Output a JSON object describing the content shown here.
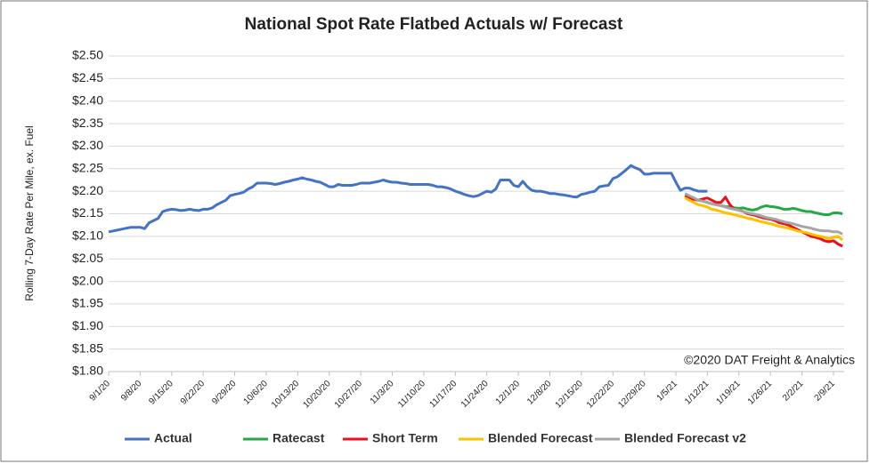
{
  "chart_data": {
    "type": "line",
    "title": "National Spot Rate Flatbed Actuals w/ Forecast",
    "ylabel": "Rolling 7-Day Rate Per Mile, ex. Fuel",
    "annotation": "©2020 DAT Freight & Analytics",
    "categories": [
      "9/1/20",
      null,
      null,
      null,
      null,
      null,
      null,
      "9/8/20",
      null,
      null,
      null,
      null,
      null,
      null,
      "9/15/20",
      null,
      null,
      null,
      null,
      null,
      null,
      "9/22/20",
      null,
      null,
      null,
      null,
      null,
      null,
      "9/29/20",
      null,
      null,
      null,
      null,
      null,
      null,
      "10/6/20",
      null,
      null,
      null,
      null,
      null,
      null,
      "10/13/20",
      null,
      null,
      null,
      null,
      null,
      null,
      "10/20/20",
      null,
      null,
      null,
      null,
      null,
      null,
      "10/27/20",
      null,
      null,
      null,
      null,
      null,
      null,
      "11/3/20",
      null,
      null,
      null,
      null,
      null,
      null,
      "11/10/20",
      null,
      null,
      null,
      null,
      null,
      null,
      "11/17/20",
      null,
      null,
      null,
      null,
      null,
      null,
      "11/24/20",
      null,
      null,
      null,
      null,
      null,
      null,
      "12/1/20",
      null,
      null,
      null,
      null,
      null,
      null,
      "12/8/20",
      null,
      null,
      null,
      null,
      null,
      null,
      "12/15/20",
      null,
      null,
      null,
      null,
      null,
      null,
      "12/22/20",
      null,
      null,
      null,
      null,
      null,
      null,
      "12/29/20",
      null,
      null,
      null,
      null,
      null,
      null,
      "1/5/21",
      null,
      null,
      null,
      null,
      null,
      null,
      "1/12/21",
      null,
      null,
      null,
      null,
      null,
      null,
      "1/19/21",
      null,
      null,
      null,
      null,
      null,
      null,
      "1/26/21",
      null,
      null,
      null,
      null,
      null,
      null,
      "2/2/21",
      null,
      null,
      null,
      null,
      null,
      null,
      "2/9/21",
      null,
      null
    ],
    "series": [
      {
        "name": "Actual",
        "color": "#4472c4",
        "values": [
          2.11,
          2.112,
          2.114,
          2.116,
          2.118,
          2.12,
          2.12,
          2.12,
          2.117,
          2.13,
          2.135,
          2.14,
          2.155,
          2.158,
          2.16,
          2.159,
          2.157,
          2.158,
          2.16,
          2.158,
          2.157,
          2.16,
          2.16,
          2.163,
          2.17,
          2.175,
          2.18,
          2.19,
          2.193,
          2.195,
          2.198,
          2.205,
          2.21,
          2.218,
          2.218,
          2.218,
          2.217,
          2.215,
          2.217,
          2.22,
          2.222,
          2.225,
          2.227,
          2.23,
          2.227,
          2.225,
          2.222,
          2.22,
          2.215,
          2.21,
          2.21,
          2.215,
          2.213,
          2.213,
          2.213,
          2.215,
          2.218,
          2.218,
          2.218,
          2.22,
          2.222,
          2.225,
          2.222,
          2.22,
          2.22,
          2.218,
          2.217,
          2.215,
          2.215,
          2.215,
          2.215,
          2.215,
          2.213,
          2.21,
          2.21,
          2.208,
          2.205,
          2.2,
          2.197,
          2.193,
          2.19,
          2.188,
          2.19,
          2.195,
          2.2,
          2.198,
          2.205,
          2.225,
          2.225,
          2.225,
          2.213,
          2.21,
          2.222,
          2.21,
          2.202,
          2.2,
          2.2,
          2.198,
          2.195,
          2.195,
          2.193,
          2.192,
          2.19,
          2.188,
          2.187,
          2.193,
          2.195,
          2.198,
          2.2,
          2.21,
          2.212,
          2.213,
          2.228,
          2.232,
          2.24,
          2.248,
          2.257,
          2.252,
          2.248,
          2.238,
          2.238,
          2.24,
          2.24,
          2.24,
          2.24,
          2.24,
          2.22,
          2.202,
          2.207,
          2.207,
          2.203,
          2.2,
          2.2,
          2.2,
          null,
          null,
          null,
          null,
          null,
          null,
          null,
          null,
          null,
          null,
          null,
          null,
          null,
          null,
          null,
          null,
          null,
          null,
          null,
          null,
          null,
          null,
          null,
          null,
          null,
          null,
          null,
          null,
          null,
          null
        ]
      },
      {
        "name": "Ratecast",
        "color": "#28a745",
        "values": [
          null,
          null,
          null,
          null,
          null,
          null,
          null,
          null,
          null,
          null,
          null,
          null,
          null,
          null,
          null,
          null,
          null,
          null,
          null,
          null,
          null,
          null,
          null,
          null,
          null,
          null,
          null,
          null,
          null,
          null,
          null,
          null,
          null,
          null,
          null,
          null,
          null,
          null,
          null,
          null,
          null,
          null,
          null,
          null,
          null,
          null,
          null,
          null,
          null,
          null,
          null,
          null,
          null,
          null,
          null,
          null,
          null,
          null,
          null,
          null,
          null,
          null,
          null,
          null,
          null,
          null,
          null,
          null,
          null,
          null,
          null,
          null,
          null,
          null,
          null,
          null,
          null,
          null,
          null,
          null,
          null,
          null,
          null,
          null,
          null,
          null,
          null,
          null,
          null,
          null,
          null,
          null,
          null,
          null,
          null,
          null,
          null,
          null,
          null,
          null,
          null,
          null,
          null,
          null,
          null,
          null,
          null,
          null,
          null,
          null,
          null,
          null,
          null,
          null,
          null,
          null,
          null,
          null,
          null,
          null,
          null,
          null,
          null,
          null,
          null,
          null,
          null,
          null,
          2.19,
          2.187,
          2.183,
          2.18,
          2.178,
          2.175,
          2.172,
          2.17,
          2.168,
          2.166,
          2.165,
          2.163,
          2.162,
          2.163,
          2.16,
          2.158,
          2.16,
          2.165,
          2.168,
          2.166,
          2.165,
          2.163,
          2.16,
          2.16,
          2.162,
          2.16,
          2.157,
          2.155,
          2.155,
          2.152,
          2.15,
          2.148,
          2.148,
          2.152,
          2.152,
          2.15
        ]
      },
      {
        "name": "Short Term",
        "color": "#e8101a",
        "values": [
          null,
          null,
          null,
          null,
          null,
          null,
          null,
          null,
          null,
          null,
          null,
          null,
          null,
          null,
          null,
          null,
          null,
          null,
          null,
          null,
          null,
          null,
          null,
          null,
          null,
          null,
          null,
          null,
          null,
          null,
          null,
          null,
          null,
          null,
          null,
          null,
          null,
          null,
          null,
          null,
          null,
          null,
          null,
          null,
          null,
          null,
          null,
          null,
          null,
          null,
          null,
          null,
          null,
          null,
          null,
          null,
          null,
          null,
          null,
          null,
          null,
          null,
          null,
          null,
          null,
          null,
          null,
          null,
          null,
          null,
          null,
          null,
          null,
          null,
          null,
          null,
          null,
          null,
          null,
          null,
          null,
          null,
          null,
          null,
          null,
          null,
          null,
          null,
          null,
          null,
          null,
          null,
          null,
          null,
          null,
          null,
          null,
          null,
          null,
          null,
          null,
          null,
          null,
          null,
          null,
          null,
          null,
          null,
          null,
          null,
          null,
          null,
          null,
          null,
          null,
          null,
          null,
          null,
          null,
          null,
          null,
          null,
          null,
          null,
          null,
          null,
          null,
          null,
          2.19,
          2.185,
          2.182,
          2.18,
          2.183,
          2.185,
          2.18,
          2.175,
          2.175,
          2.187,
          2.17,
          2.16,
          2.158,
          2.155,
          2.15,
          2.148,
          2.145,
          2.142,
          2.14,
          2.138,
          2.135,
          2.13,
          2.128,
          2.125,
          2.12,
          2.115,
          2.11,
          2.105,
          2.1,
          2.098,
          2.095,
          2.09,
          2.088,
          2.09,
          2.083,
          2.078
        ]
      },
      {
        "name": "Blended Forecast",
        "color": "#ffc000",
        "values": [
          null,
          null,
          null,
          null,
          null,
          null,
          null,
          null,
          null,
          null,
          null,
          null,
          null,
          null,
          null,
          null,
          null,
          null,
          null,
          null,
          null,
          null,
          null,
          null,
          null,
          null,
          null,
          null,
          null,
          null,
          null,
          null,
          null,
          null,
          null,
          null,
          null,
          null,
          null,
          null,
          null,
          null,
          null,
          null,
          null,
          null,
          null,
          null,
          null,
          null,
          null,
          null,
          null,
          null,
          null,
          null,
          null,
          null,
          null,
          null,
          null,
          null,
          null,
          null,
          null,
          null,
          null,
          null,
          null,
          null,
          null,
          null,
          null,
          null,
          null,
          null,
          null,
          null,
          null,
          null,
          null,
          null,
          null,
          null,
          null,
          null,
          null,
          null,
          null,
          null,
          null,
          null,
          null,
          null,
          null,
          null,
          null,
          null,
          null,
          null,
          null,
          null,
          null,
          null,
          null,
          null,
          null,
          null,
          null,
          null,
          null,
          null,
          null,
          null,
          null,
          null,
          null,
          null,
          null,
          null,
          null,
          null,
          null,
          null,
          null,
          null,
          null,
          null,
          2.185,
          2.18,
          2.175,
          2.17,
          2.168,
          2.165,
          2.16,
          2.158,
          2.155,
          2.152,
          2.15,
          2.148,
          2.145,
          2.143,
          2.14,
          2.138,
          2.135,
          2.132,
          2.13,
          2.128,
          2.125,
          2.122,
          2.12,
          2.118,
          2.115,
          2.112,
          2.11,
          2.108,
          2.105,
          2.102,
          2.1,
          2.098,
          2.095,
          2.098,
          2.1,
          2.092
        ]
      },
      {
        "name": "Blended Forecast v2",
        "color": "#a5a5a5",
        "values": [
          null,
          null,
          null,
          null,
          null,
          null,
          null,
          null,
          null,
          null,
          null,
          null,
          null,
          null,
          null,
          null,
          null,
          null,
          null,
          null,
          null,
          null,
          null,
          null,
          null,
          null,
          null,
          null,
          null,
          null,
          null,
          null,
          null,
          null,
          null,
          null,
          null,
          null,
          null,
          null,
          null,
          null,
          null,
          null,
          null,
          null,
          null,
          null,
          null,
          null,
          null,
          null,
          null,
          null,
          null,
          null,
          null,
          null,
          null,
          null,
          null,
          null,
          null,
          null,
          null,
          null,
          null,
          null,
          null,
          null,
          null,
          null,
          null,
          null,
          null,
          null,
          null,
          null,
          null,
          null,
          null,
          null,
          null,
          null,
          null,
          null,
          null,
          null,
          null,
          null,
          null,
          null,
          null,
          null,
          null,
          null,
          null,
          null,
          null,
          null,
          null,
          null,
          null,
          null,
          null,
          null,
          null,
          null,
          null,
          null,
          null,
          null,
          null,
          null,
          null,
          null,
          null,
          null,
          null,
          null,
          null,
          null,
          null,
          null,
          null,
          null,
          null,
          null,
          2.195,
          2.19,
          2.185,
          2.18,
          2.178,
          2.175,
          2.172,
          2.17,
          2.168,
          2.165,
          2.162,
          2.16,
          2.158,
          2.155,
          2.152,
          2.15,
          2.148,
          2.145,
          2.142,
          2.14,
          2.138,
          2.135,
          2.132,
          2.13,
          2.128,
          2.125,
          2.122,
          2.12,
          2.118,
          2.115,
          2.113,
          2.112,
          2.112,
          2.11,
          2.11,
          2.105
        ]
      }
    ],
    "ylim": [
      1.8,
      2.5
    ],
    "yticks": [
      {
        "value": 1.8,
        "label": "$1.80"
      },
      {
        "value": 1.85,
        "label": "$1.85"
      },
      {
        "value": 1.9,
        "label": "$1.90"
      },
      {
        "value": 1.95,
        "label": "$1.95"
      },
      {
        "value": 2.0,
        "label": "$2.00"
      },
      {
        "value": 2.05,
        "label": "$2.05"
      },
      {
        "value": 2.1,
        "label": "$2.10"
      },
      {
        "value": 2.15,
        "label": "$2.15"
      },
      {
        "value": 2.2,
        "label": "$2.20"
      },
      {
        "value": 2.25,
        "label": "$2.25"
      },
      {
        "value": 2.3,
        "label": "$2.30"
      },
      {
        "value": 2.35,
        "label": "$2.35"
      },
      {
        "value": 2.4,
        "label": "$2.40"
      },
      {
        "value": 2.45,
        "label": "$2.45"
      },
      {
        "value": 2.5,
        "label": "$2.50"
      }
    ],
    "grid": true,
    "legend": "bottom"
  }
}
